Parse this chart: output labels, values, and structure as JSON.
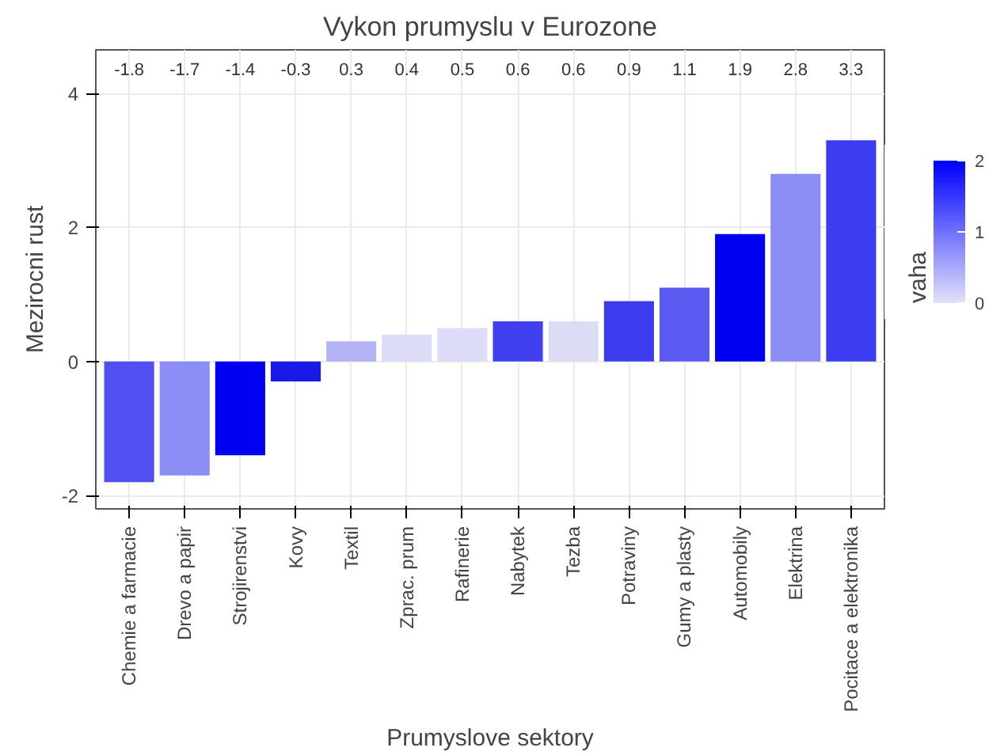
{
  "chart_data": {
    "type": "bar",
    "title": "Vykon prumyslu v Eurozone",
    "xlabel": "Prumyslove sektory",
    "ylabel": "Mezirocni rust",
    "clabel": "vaha",
    "categories": [
      "Chemie a farmacie",
      "Drevo a papir",
      "Strojirenstvi",
      "Kovy",
      "Textil",
      "Zprac. prum",
      "Rafinerie",
      "Nabytek",
      "Tezba",
      "Potraviny",
      "Gumy a plasty",
      "Automobily",
      "Elektrina",
      "Pocitace a elektronika"
    ],
    "values": [
      -1.8,
      -1.7,
      -1.4,
      -0.3,
      0.3,
      0.4,
      0.5,
      0.6,
      0.6,
      0.9,
      1.1,
      1.9,
      2.8,
      3.3
    ],
    "colors": [
      "#5050f0",
      "#8c8cf5",
      "#0000f5",
      "#1a1ae6",
      "#b3b3f5",
      "#dcdcf8",
      "#dcdcf8",
      "#4040ee",
      "#dcdcf5",
      "#3c3cee",
      "#5a5af0",
      "#0000f0",
      "#8c8cf5",
      "#3c3cf0"
    ],
    "ylim": [
      -2.2,
      4.65
    ],
    "yticks": [
      -2,
      0,
      2,
      4
    ],
    "clim": [
      0,
      2
    ],
    "cticks": [
      0,
      1,
      2
    ],
    "annotations": [
      "-1.8",
      "-1.7",
      "-1.4",
      "-0.3",
      "0.3",
      "0.4",
      "0.5",
      "0.6",
      "0.6",
      "0.9",
      "1.1",
      "1.9",
      "2.8",
      "3.3"
    ],
    "grid": true
  }
}
